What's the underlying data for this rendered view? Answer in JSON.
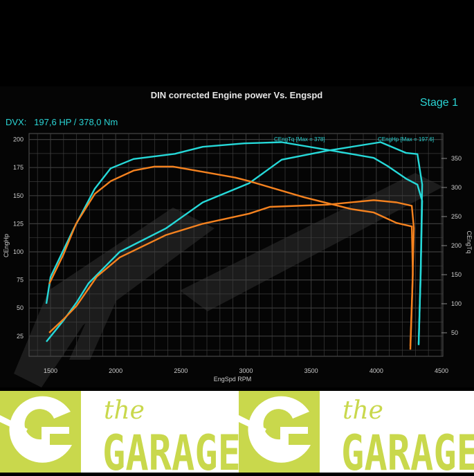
{
  "chart_data": {
    "type": "line",
    "title": "DIN corrected Engine power Vs. Engspd",
    "stage_label": "Stage 1",
    "summary": "DVX:   197,6 HP / 378,0 Nm",
    "xlabel": "EngSpd RPM",
    "ylabel_left": "CEngHp",
    "ylabel_right": "CEngTq",
    "xlim": [
      1333,
      4520
    ],
    "ylim_left": [
      6,
      205
    ],
    "ylim_right": [
      0,
      400
    ],
    "x_ticks": [
      1500,
      2000,
      2500,
      3000,
      3500,
      4000,
      4500
    ],
    "y_ticks_left": [
      25,
      50,
      75,
      100,
      125,
      150,
      175,
      200
    ],
    "y_ticks_right": [
      50,
      100,
      150,
      200,
      250,
      300,
      350
    ],
    "grid": true,
    "colors": {
      "stage1": "#26d9d9",
      "stock": "#f5821f",
      "grid": "#3c3c3c",
      "text": "#cccccc",
      "accent": "#2ad4d4"
    },
    "annotations": [
      {
        "text": "CEngTq [Max = 378]",
        "series": "stage1_torque",
        "x": 3250,
        "y_right": 378
      },
      {
        "text": "CEngHp [Max = 197.6]",
        "series": "stage1_power",
        "x": 4050,
        "y_left": 197.6
      }
    ],
    "series": [
      {
        "id": "stage1_torque",
        "axis": "right",
        "color": "#26d9d9",
        "points": [
          [
            1468,
            100
          ],
          [
            1500,
            146
          ],
          [
            1680,
            230
          ],
          [
            1840,
            298
          ],
          [
            1962,
            333
          ],
          [
            2137,
            349
          ],
          [
            2456,
            358
          ],
          [
            2668,
            370
          ],
          [
            2987,
            376
          ],
          [
            3274,
            378
          ],
          [
            3698,
            362
          ],
          [
            3980,
            351
          ],
          [
            4086,
            337
          ],
          [
            4230,
            315
          ],
          [
            4315,
            305
          ],
          [
            4352,
            277
          ],
          [
            4340,
            150
          ],
          [
            4325,
            31
          ]
        ]
      },
      {
        "id": "stage1_power",
        "axis": "left",
        "color": "#26d9d9",
        "points": [
          [
            1468,
            20
          ],
          [
            1600,
            39
          ],
          [
            1700,
            55
          ],
          [
            1792,
            72
          ],
          [
            2031,
            100
          ],
          [
            2387,
            121
          ],
          [
            2668,
            144
          ],
          [
            3024,
            161
          ],
          [
            3274,
            182
          ],
          [
            3624,
            190
          ],
          [
            4033,
            197.6
          ],
          [
            4230,
            188
          ],
          [
            4315,
            187
          ],
          [
            4352,
            160
          ],
          [
            4340,
            80
          ],
          [
            4325,
            17
          ]
        ]
      },
      {
        "id": "stock_torque",
        "axis": "right",
        "color": "#f5821f",
        "points": [
          [
            1490,
            134
          ],
          [
            1600,
            185
          ],
          [
            1697,
            238
          ],
          [
            1840,
            289
          ],
          [
            1962,
            311
          ],
          [
            2137,
            329
          ],
          [
            2297,
            336
          ],
          [
            2440,
            336
          ],
          [
            2668,
            327
          ],
          [
            2918,
            317
          ],
          [
            3024,
            311
          ],
          [
            3449,
            283
          ],
          [
            3805,
            263
          ],
          [
            3980,
            257
          ],
          [
            4155,
            239
          ],
          [
            4272,
            233
          ],
          [
            4280,
            150
          ],
          [
            4261,
            27
          ]
        ]
      },
      {
        "id": "stock_power",
        "axis": "left",
        "color": "#f5821f",
        "points": [
          [
            1490,
            28
          ],
          [
            1600,
            40
          ],
          [
            1700,
            52
          ],
          [
            1856,
            78
          ],
          [
            2031,
            95
          ],
          [
            2387,
            115
          ],
          [
            2668,
            125
          ],
          [
            3024,
            134
          ],
          [
            3183,
            140
          ],
          [
            3624,
            142
          ],
          [
            3980,
            146
          ],
          [
            4155,
            144
          ],
          [
            4272,
            141
          ],
          [
            4288,
            121
          ],
          [
            4275,
            60
          ],
          [
            4261,
            13
          ]
        ]
      }
    ]
  },
  "banner": {
    "brand_top": "the",
    "brand_main": "GARAGE",
    "color": "#c9d84c"
  }
}
